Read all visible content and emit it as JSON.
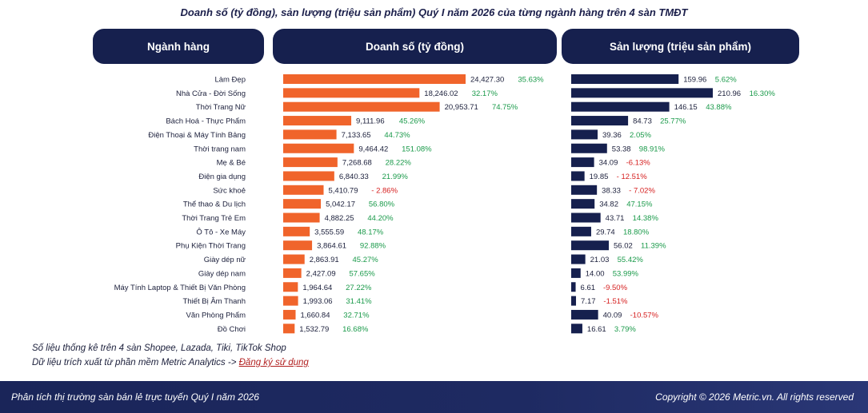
{
  "title": "Doanh số (tỷ đồng), sản lượng (triệu sản phẩm) Quý I năm 2026 của từng ngành hàng trên 4 sàn TMĐT",
  "headers": {
    "category": "Ngành hàng",
    "revenue": "Doanh số (tỷ đồng)",
    "volume": "Sản lượng (triệu sản phẩm)"
  },
  "colors": {
    "revenue_bar": "#f0642b",
    "volume_bar": "#16204e",
    "positive": "#1a9a4a",
    "negative": "#d62020",
    "header_bg": "#16204e"
  },
  "chart_data": {
    "type": "bar",
    "orientation": "horizontal",
    "categories": [
      "Làm Đẹp",
      "Nhà Cửa - Đời Sống",
      "Thời Trang Nữ",
      "Bách Hoá - Thực Phẩm",
      "Điện Thoại & Máy Tính Bảng",
      "Thời trang nam",
      "Mẹ & Bé",
      "Điện gia dụng",
      "Sức khoẻ",
      "Thể thao & Du lịch",
      "Thời Trang Trẻ Em",
      "Ô Tô - Xe Máy",
      "Phụ Kiện Thời Trang",
      "Giày dép nữ",
      "Giày dép nam",
      "Máy Tính Laptop & Thiết Bị Văn Phòng",
      "Thiết Bị Âm Thanh",
      "Văn Phòng Phẩm",
      "Đồ Chơi"
    ],
    "series": [
      {
        "name": "Doanh số (tỷ đồng)",
        "values": [
          24427.3,
          18246.02,
          20953.71,
          9111.96,
          7133.65,
          9464.42,
          7268.68,
          6840.33,
          5410.79,
          5042.17,
          4882.25,
          3555.59,
          3864.61,
          2863.91,
          2427.09,
          1964.64,
          1993.06,
          1660.84,
          1532.79
        ],
        "value_labels": [
          "24,427.30",
          "18,246.02",
          "20,953.71",
          "9,111.96",
          "7,133.65",
          "9,464.42",
          "7,268.68",
          "6,840.33",
          "5,410.79",
          "5,042.17",
          "4,882.25",
          "3,555.59",
          "3,864.61",
          "2,863.91",
          "2,427.09",
          "1,964.64",
          "1,993.06",
          "1,660.84",
          "1,532.79"
        ],
        "growth": [
          "35.63%",
          "32.17%",
          "74.75%",
          "45.26%",
          "44.73%",
          "151.08%",
          "28.22%",
          "21.99%",
          "- 2.86%",
          "56.80%",
          "44.20%",
          "48.17%",
          "92.88%",
          "45.27%",
          "57.65%",
          "27.22%",
          "31.41%",
          "32.71%",
          "16.68%"
        ]
      },
      {
        "name": "Sản lượng (triệu sản phẩm)",
        "values": [
          159.96,
          210.96,
          146.15,
          84.73,
          39.36,
          53.38,
          34.09,
          19.85,
          38.33,
          34.82,
          43.71,
          29.74,
          56.02,
          21.03,
          14.0,
          6.61,
          7.17,
          40.09,
          16.61
        ],
        "value_labels": [
          "159.96",
          "210.96",
          "146.15",
          "84.73",
          "39.36",
          "53.38",
          "34.09",
          "19.85",
          "38.33",
          "34.82",
          "43.71",
          "29.74",
          "56.02",
          "21.03",
          "14.00",
          "6.61",
          "7.17",
          "40.09",
          "16.61"
        ],
        "growth": [
          "5.62%",
          "16.30%",
          "43.88%",
          "25.77%",
          "2.05%",
          "98.91%",
          "-6.13%",
          "- 12.51%",
          "- 7.02%",
          "47.15%",
          "14.38%",
          "18.80%",
          "11.39%",
          "55.42%",
          "53.99%",
          "-9.50%",
          "-1.51%",
          "-10.57%",
          "3.79%"
        ]
      }
    ]
  },
  "notes": {
    "source": "Số liệu thống kê trên 4 sàn Shopee, Lazada, Tiki, TikTok Shop",
    "extract_prefix": "Dữ liệu trích xuất từ phần mềm Metric Analytics -> ",
    "register_link": "Đăng ký sử dụng"
  },
  "footer": {
    "left": "Phân tích thị trường sàn bán lẻ trực tuyến Quý I năm 2026",
    "right": "Copyright © 2026 Metric.vn. All rights reserved"
  }
}
